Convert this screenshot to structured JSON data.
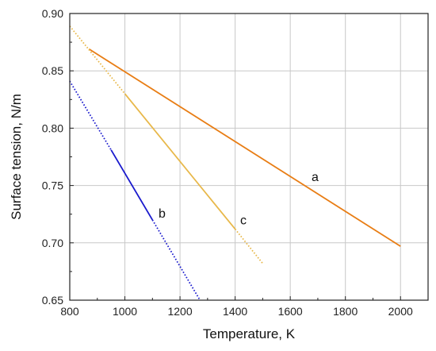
{
  "chart_data": {
    "type": "line",
    "xlabel": "Temperature, K",
    "ylabel": "Surface tension, N/m",
    "xlim": [
      800,
      2100
    ],
    "ylim": [
      0.65,
      0.9
    ],
    "xticks": [
      800,
      1000,
      1200,
      1400,
      1600,
      1800,
      2000
    ],
    "yticks": [
      0.65,
      0.7,
      0.75,
      0.8,
      0.85,
      0.9
    ],
    "xtick_labels": [
      "800",
      "1000",
      "1200",
      "1400",
      "1600",
      "1800",
      "2000"
    ],
    "ytick_labels": [
      "0.65",
      "0.70",
      "0.75",
      "0.80",
      "0.85",
      "0.90"
    ],
    "grid": true,
    "series": [
      {
        "name": "a",
        "color": "#e87d14",
        "segments": [
          {
            "style": "solid",
            "x": [
              870,
              2000
            ],
            "y": [
              0.869,
              0.697
            ]
          }
        ],
        "label_at": {
          "x": 1690,
          "y": 0.754
        }
      },
      {
        "name": "b",
        "color": "#1a1acd",
        "segments": [
          {
            "style": "dotted",
            "x": [
              800,
              950
            ],
            "y": [
              0.841,
              0.781
            ]
          },
          {
            "style": "solid",
            "x": [
              950,
              1100
            ],
            "y": [
              0.781,
              0.72
            ]
          },
          {
            "style": "dotted",
            "x": [
              1100,
              1270
            ],
            "y": [
              0.72,
              0.651
            ]
          }
        ],
        "label_at": {
          "x": 1135,
          "y": 0.722
        }
      },
      {
        "name": "c",
        "color": "#e8b84a",
        "segments": [
          {
            "style": "dotted",
            "x": [
              800,
              1000
            ],
            "y": [
              0.889,
              0.83
            ]
          },
          {
            "style": "solid",
            "x": [
              1000,
              1400
            ],
            "y": [
              0.83,
              0.712
            ]
          },
          {
            "style": "dotted",
            "x": [
              1400,
              1500
            ],
            "y": [
              0.712,
              0.682
            ]
          }
        ],
        "label_at": {
          "x": 1430,
          "y": 0.716
        }
      }
    ]
  }
}
